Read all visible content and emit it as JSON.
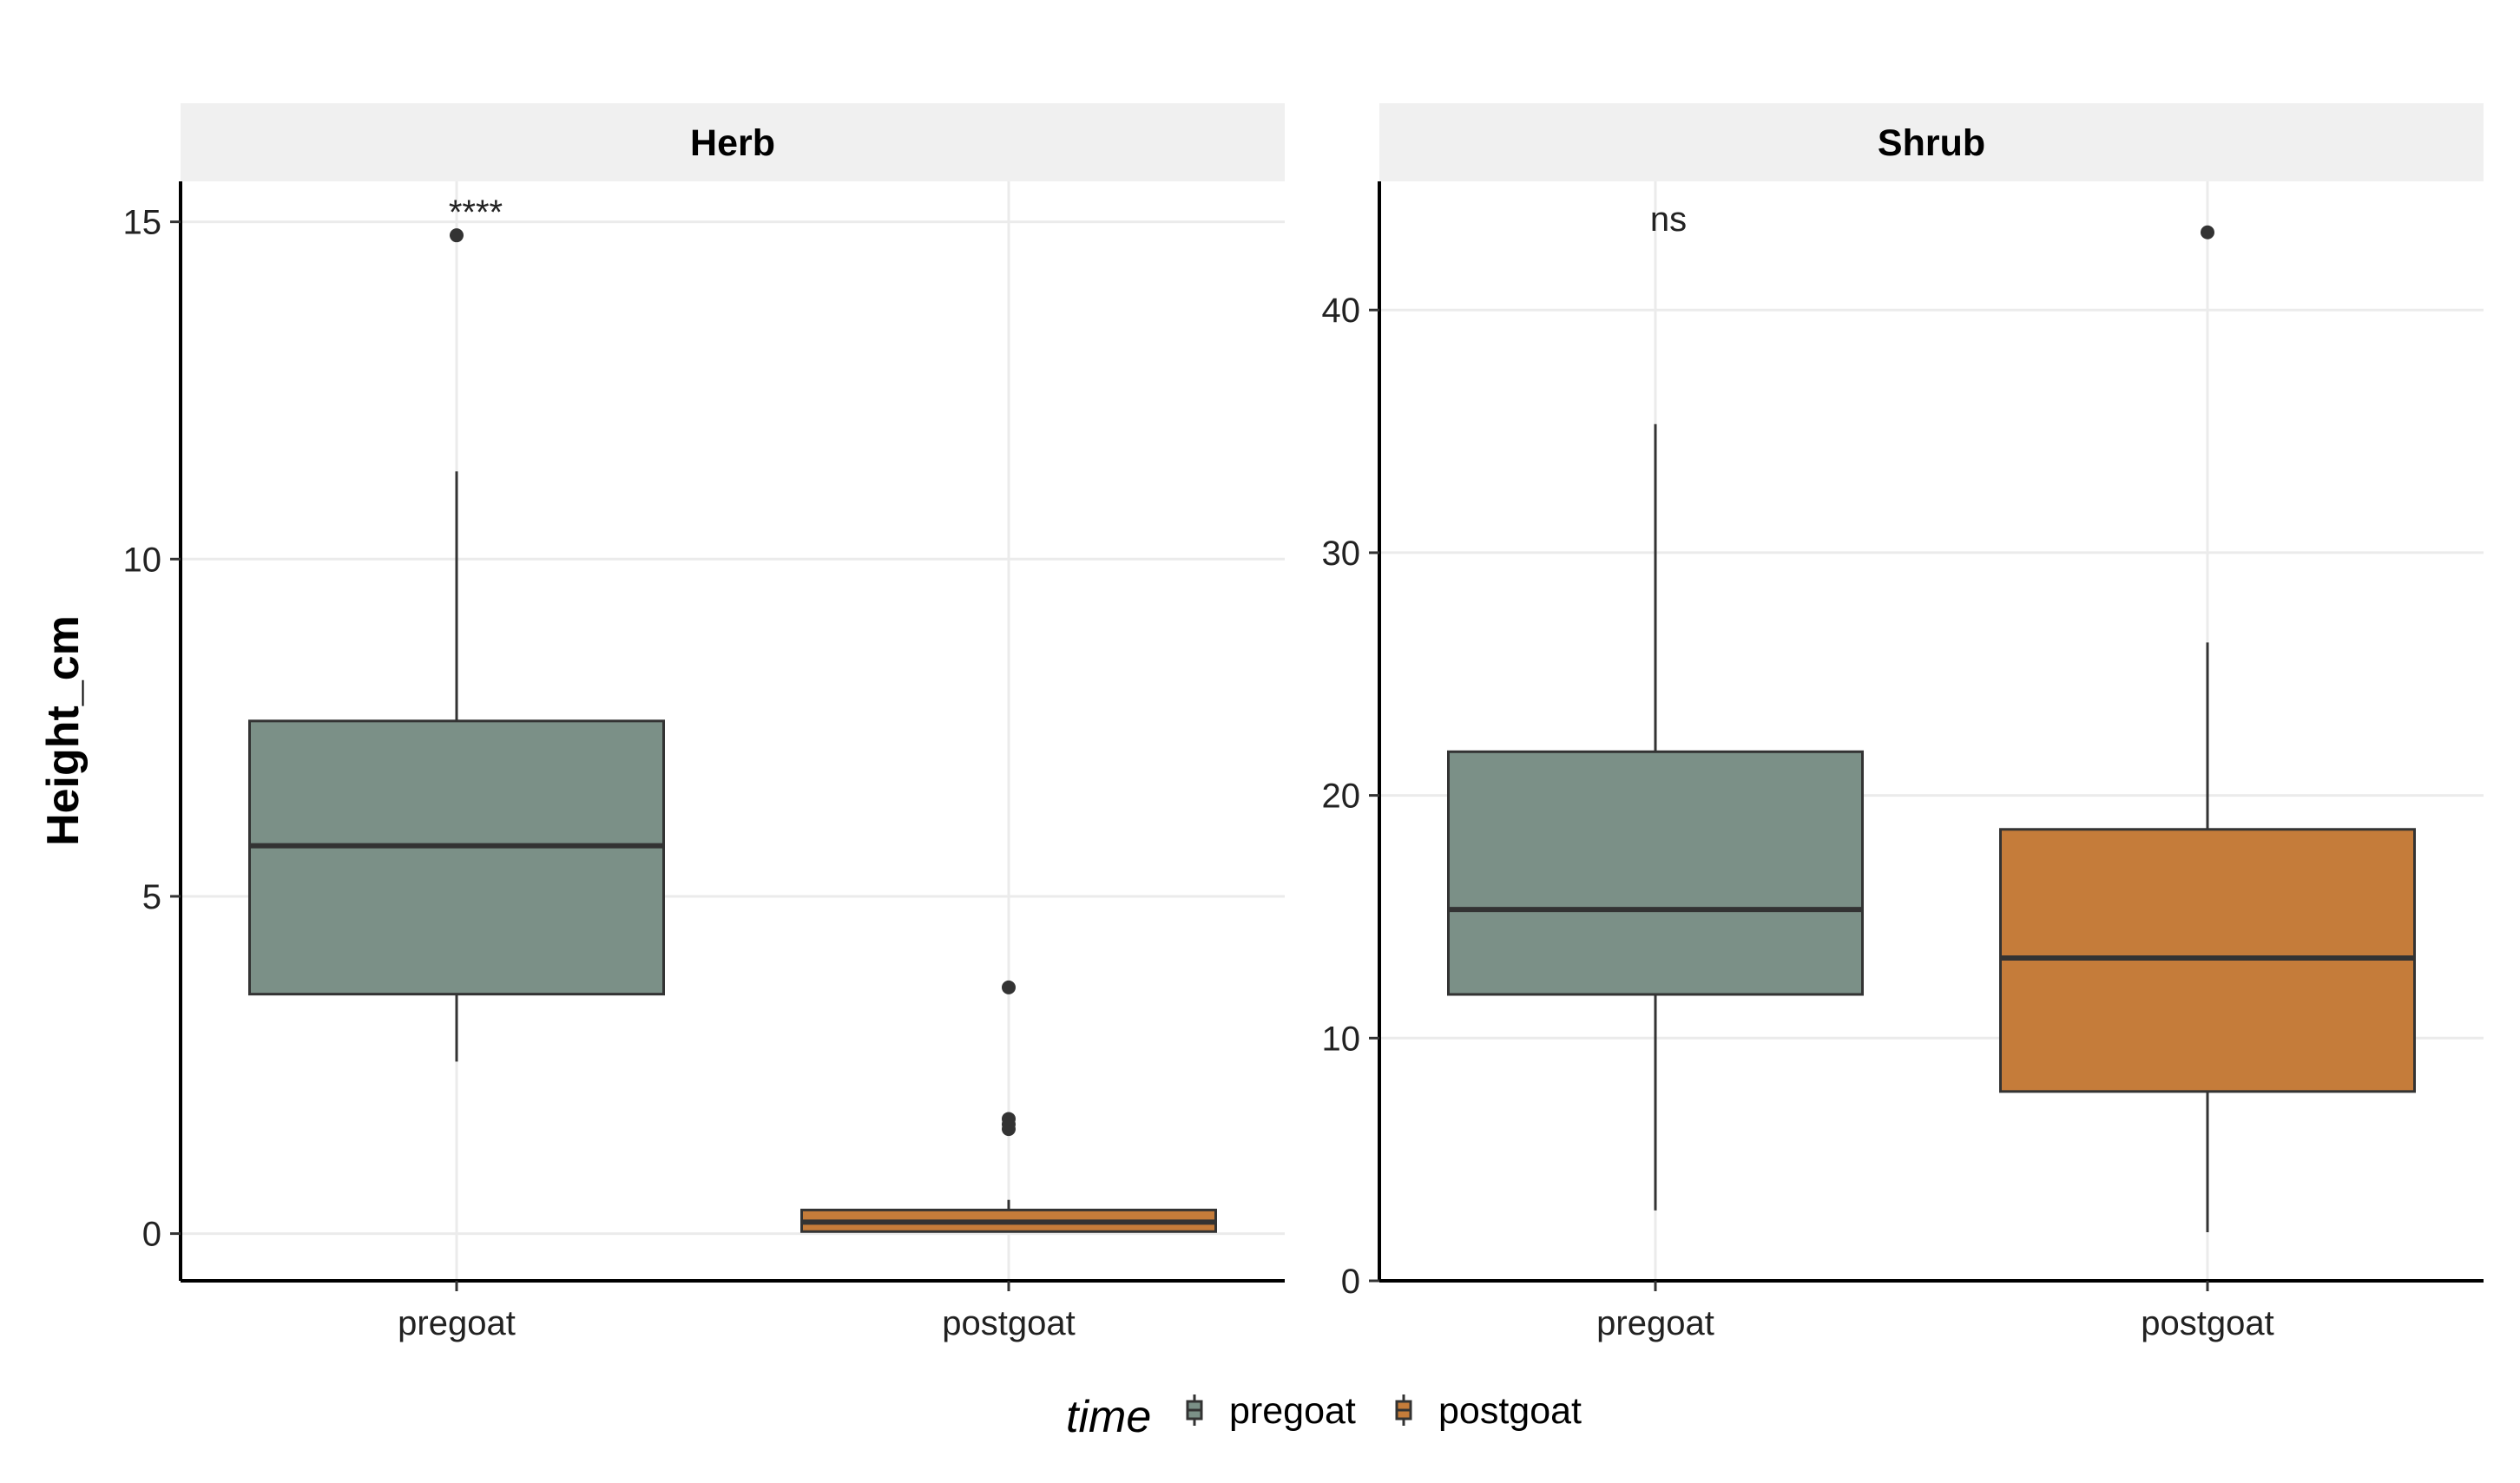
{
  "chart_data": {
    "type": "boxplot",
    "ylabel": "Height_cm",
    "categories": [
      "pregoat",
      "postgoat"
    ],
    "legend": {
      "title": "time",
      "position": "bottom",
      "items": [
        {
          "label": "pregoat",
          "color": "#7b9087"
        },
        {
          "label": "postgoat",
          "color": "#c57c3a"
        }
      ]
    },
    "grid": true,
    "panels": [
      {
        "name": "Herb",
        "ylim": [
          -0.7,
          15.6
        ],
        "yticks": [
          0,
          5,
          10,
          15
        ],
        "yticklabels": [
          "0",
          "5",
          "10",
          "15"
        ],
        "significance": "****",
        "boxes": [
          {
            "group": "pregoat",
            "lower_whisker": 2.55,
            "q1": 3.55,
            "median": 5.75,
            "q3": 7.6,
            "upper_whisker": 11.3,
            "outliers": [
              14.8
            ]
          },
          {
            "group": "postgoat",
            "lower_whisker": 0.02,
            "q1": 0.03,
            "median": 0.17,
            "q3": 0.35,
            "upper_whisker": 0.5,
            "outliers": [
              1.55,
              1.62,
              1.7,
              3.65
            ]
          }
        ]
      },
      {
        "name": "Shrub",
        "ylim": [
          0,
          45.3
        ],
        "yticks": [
          0,
          10,
          20,
          30,
          40
        ],
        "yticklabels": [
          "0",
          "10",
          "20",
          "30",
          "40"
        ],
        "significance": "ns",
        "boxes": [
          {
            "group": "pregoat",
            "lower_whisker": 2.9,
            "q1": 11.8,
            "median": 15.3,
            "q3": 21.8,
            "upper_whisker": 35.3,
            "outliers": []
          },
          {
            "group": "postgoat",
            "lower_whisker": 2.0,
            "q1": 7.8,
            "median": 13.3,
            "q3": 18.6,
            "upper_whisker": 26.3,
            "outliers": [
              43.2
            ]
          }
        ]
      }
    ]
  }
}
